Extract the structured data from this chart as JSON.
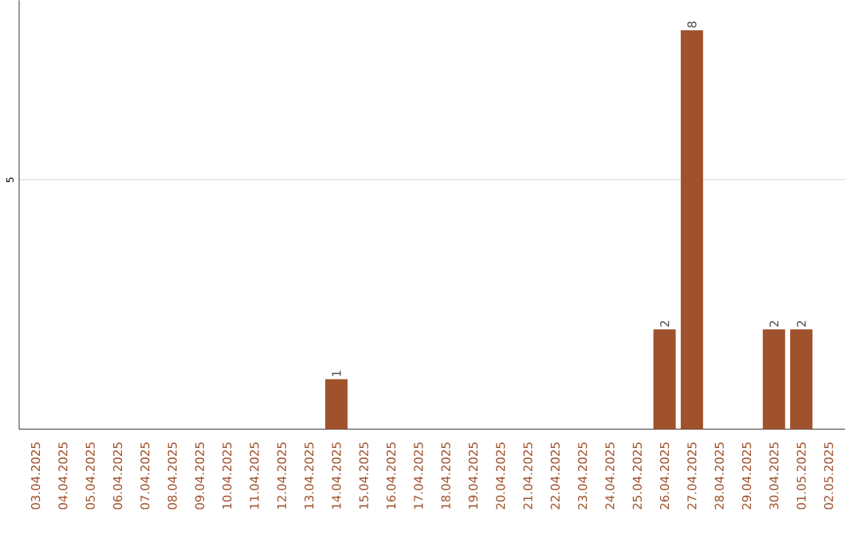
{
  "chart_data": {
    "type": "bar",
    "categories": [
      "03.04.2025",
      "04.04.2025",
      "05.04.2025",
      "06.04.2025",
      "07.04.2025",
      "08.04.2025",
      "09.04.2025",
      "10.04.2025",
      "11.04.2025",
      "12.04.2025",
      "13.04.2025",
      "14.04.2025",
      "15.04.2025",
      "16.04.2025",
      "17.04.2025",
      "18.04.2025",
      "19.04.2025",
      "20.04.2025",
      "21.04.2025",
      "22.04.2025",
      "23.04.2025",
      "24.04.2025",
      "25.04.2025",
      "26.04.2025",
      "27.04.2025",
      "28.04.2025",
      "29.04.2025",
      "30.04.2025",
      "01.05.2025",
      "02.05.2025"
    ],
    "values": [
      0,
      0,
      0,
      0,
      0,
      0,
      0,
      0,
      0,
      0,
      0,
      1,
      0,
      0,
      0,
      0,
      0,
      0,
      0,
      0,
      0,
      0,
      0,
      2,
      8,
      0,
      0,
      2,
      2,
      0
    ],
    "value_labels": [
      null,
      null,
      null,
      null,
      null,
      null,
      null,
      null,
      null,
      null,
      null,
      "1",
      null,
      null,
      null,
      null,
      null,
      null,
      null,
      null,
      null,
      null,
      null,
      "2",
      "8",
      null,
      null,
      "2",
      "2",
      null
    ],
    "color": "#a0522d",
    "ylim": [
      0,
      8.6
    ],
    "yticks": [
      5
    ],
    "grid": "y"
  }
}
